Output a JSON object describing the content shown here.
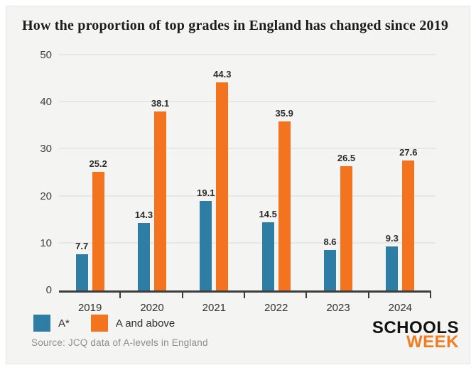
{
  "title": "How the proportion of top grades in England has changed since 2019",
  "source": "Source: JCQ data of A-levels in England",
  "logo": {
    "line1": "SCHOOLS",
    "line2": "WEEK",
    "week_color": "#f47c20"
  },
  "colors": {
    "card_background": "#f4f4f2",
    "axis": "#3d3d3d",
    "gridline": "#e7e8e5",
    "label_text": "#2d2d2d",
    "source_text": "#8e8f8d"
  },
  "chart_data": {
    "type": "bar",
    "title": "How the proportion of top grades in England has changed since 2019",
    "categories": [
      "2019",
      "2020",
      "2021",
      "2022",
      "2023",
      "2024"
    ],
    "series": [
      {
        "name": "A*",
        "color": "#2e7da5",
        "values": [
          7.7,
          14.3,
          19.1,
          14.5,
          8.6,
          9.3
        ]
      },
      {
        "name": "A and above",
        "color": "#f4731f",
        "values": [
          25.2,
          38.1,
          44.3,
          35.9,
          26.5,
          27.6
        ]
      }
    ],
    "xlabel": "",
    "ylabel": "",
    "ylim": [
      0,
      50
    ],
    "yticks": [
      0,
      10,
      20,
      30,
      40,
      50
    ],
    "grid": true,
    "value_labels": true,
    "legend_position": "bottom-left"
  }
}
